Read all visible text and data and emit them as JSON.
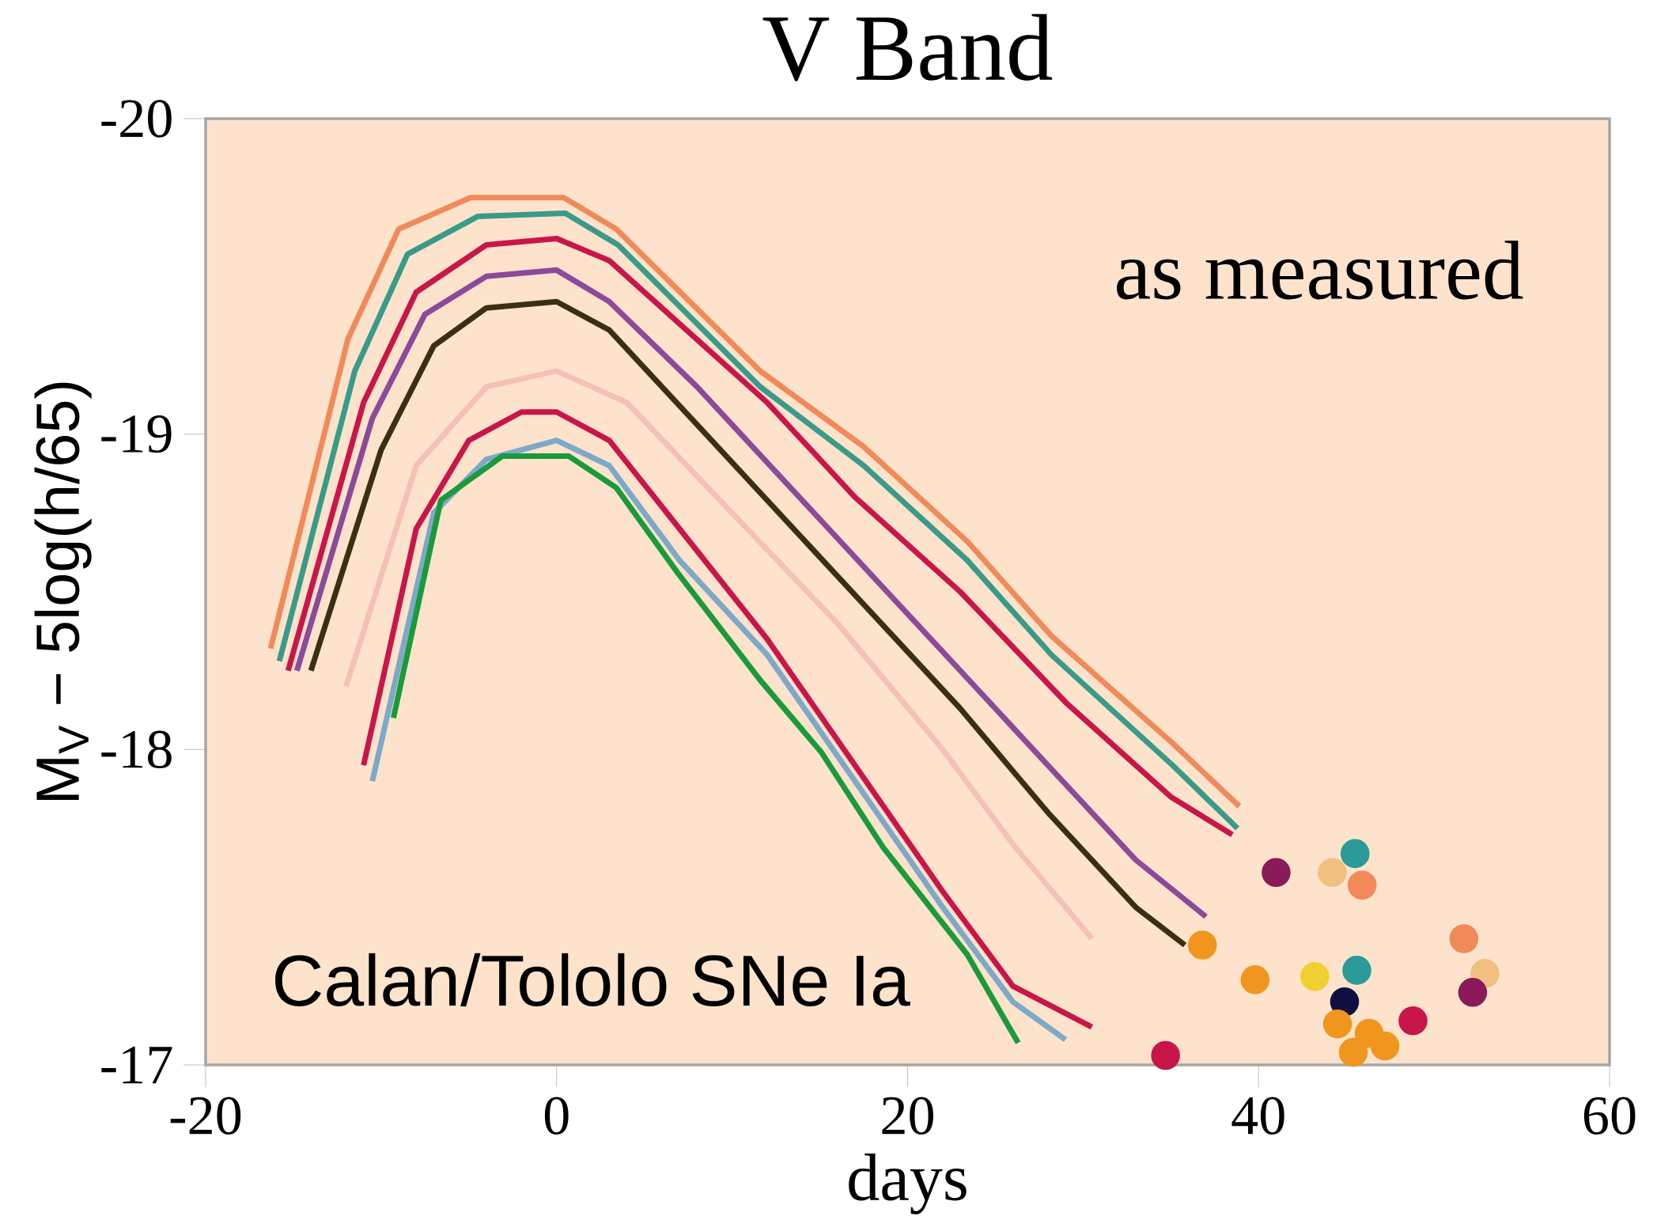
{
  "chart_data": {
    "type": "line",
    "title": "V Band",
    "xlabel": "days",
    "ylabel": "M$_{V}$ − 5log(h/65)",
    "xlim": [
      -20,
      60
    ],
    "ylim": [
      -17,
      -20
    ],
    "xticks": [
      -20,
      0,
      20,
      40,
      60
    ],
    "yticks": [
      -20,
      -19,
      -18,
      -17
    ],
    "annotations": [
      "as measured",
      "Calan/Tololo SNe Ia"
    ],
    "series": [
      {
        "color": "#f08a5a",
        "x": [
          -16.3,
          -11.9,
          -9.0,
          -4.9,
          0.4,
          3.4,
          11.6,
          17.5,
          23.4,
          28.2,
          35.1,
          38.9
        ],
        "values": [
          -18.32,
          -19.3,
          -19.65,
          -19.75,
          -19.75,
          -19.65,
          -19.2,
          -18.96,
          -18.66,
          -18.36,
          -18.02,
          -17.82
        ]
      },
      {
        "color": "#3a9a8a",
        "x": [
          -15.8,
          -11.5,
          -8.5,
          -4.5,
          0.5,
          3.5,
          11.6,
          17.5,
          23.4,
          28.2,
          35.1,
          38.8
        ],
        "values": [
          -18.28,
          -19.2,
          -19.57,
          -19.69,
          -19.7,
          -19.6,
          -19.15,
          -18.9,
          -18.6,
          -18.3,
          -17.95,
          -17.75
        ]
      },
      {
        "color": "#c8164a",
        "x": [
          -15.3,
          -11,
          -8,
          -4,
          0,
          3,
          8,
          12,
          17,
          23,
          29,
          35,
          38.5
        ],
        "values": [
          -18.25,
          -19.1,
          -19.45,
          -19.6,
          -19.62,
          -19.55,
          -19.3,
          -19.1,
          -18.8,
          -18.5,
          -18.15,
          -17.85,
          -17.73
        ]
      },
      {
        "color": "#8b4a9a",
        "x": [
          -14.8,
          -10.5,
          -7.5,
          -4,
          0,
          3,
          8,
          13,
          18,
          23,
          28,
          33,
          37
        ],
        "values": [
          -18.25,
          -19.05,
          -19.38,
          -19.5,
          -19.52,
          -19.42,
          -19.15,
          -18.85,
          -18.55,
          -18.25,
          -17.95,
          -17.65,
          -17.47
        ]
      },
      {
        "color": "#3a3010",
        "x": [
          -14,
          -10,
          -7,
          -4,
          0,
          3,
          8,
          13,
          18,
          23,
          28,
          33,
          35.8
        ],
        "values": [
          -18.25,
          -18.95,
          -19.28,
          -19.4,
          -19.42,
          -19.33,
          -19.03,
          -18.73,
          -18.43,
          -18.13,
          -17.8,
          -17.5,
          -17.38
        ]
      },
      {
        "color": "#f5c0b8",
        "x": [
          -12,
          -8,
          -4,
          0,
          4,
          10,
          16,
          22,
          26,
          30.5
        ],
        "values": [
          -18.2,
          -18.9,
          -19.15,
          -19.2,
          -19.1,
          -18.75,
          -18.4,
          -18.0,
          -17.7,
          -17.4
        ]
      },
      {
        "color": "#c8164a",
        "x": [
          -11,
          -8,
          -5,
          -2,
          0,
          3,
          7,
          12,
          17,
          22,
          26,
          30.5
        ],
        "values": [
          -17.95,
          -18.7,
          -18.98,
          -19.07,
          -19.07,
          -18.98,
          -18.7,
          -18.35,
          -17.95,
          -17.55,
          -17.25,
          -17.12
        ]
      },
      {
        "color": "#7ea8c8",
        "x": [
          -10.5,
          -7,
          -4,
          0,
          3,
          7,
          12,
          17,
          22,
          26,
          29
        ],
        "values": [
          -17.9,
          -18.75,
          -18.92,
          -18.98,
          -18.9,
          -18.6,
          -18.3,
          -17.9,
          -17.5,
          -17.2,
          -17.08
        ]
      },
      {
        "color": "#1a9a3a",
        "x": [
          -9.3,
          -6.6,
          -3.1,
          0.7,
          3.4,
          6.9,
          11.6,
          15.1,
          18.6,
          23.4,
          26.3
        ],
        "values": [
          -18.1,
          -18.79,
          -18.93,
          -18.93,
          -18.83,
          -18.56,
          -18.22,
          -17.99,
          -17.69,
          -17.35,
          -17.07
        ]
      },
      {
        "type": "scatter",
        "marker": "circle",
        "x": [
          34.7,
          36.8,
          39.8,
          41.0,
          43.2,
          44.2,
          45.5,
          45.9,
          45.6,
          44.9,
          44.5,
          45.4,
          46.3,
          47.2,
          48.8,
          51.7,
          52.9,
          52.2
        ],
        "values": [
          -17.03,
          -17.38,
          -17.27,
          -17.61,
          -17.28,
          -17.61,
          -17.67,
          -17.57,
          -17.3,
          -17.2,
          -17.13,
          -17.04,
          -17.1,
          -17.06,
          -17.14,
          -17.4,
          -17.29,
          -17.23
        ],
        "colors": [
          "#c8164a",
          "#f0961e",
          "#f0961e",
          "#8b1a5a",
          "#f0d030",
          "#f0c080",
          "#2a9a9a",
          "#f08a5a",
          "#2a9a9a",
          "#101040",
          "#f0961e",
          "#f0961e",
          "#f0961e",
          "#f0961e",
          "#c8164a",
          "#f08a5a",
          "#f0c080",
          "#8b1a5a"
        ]
      }
    ]
  }
}
